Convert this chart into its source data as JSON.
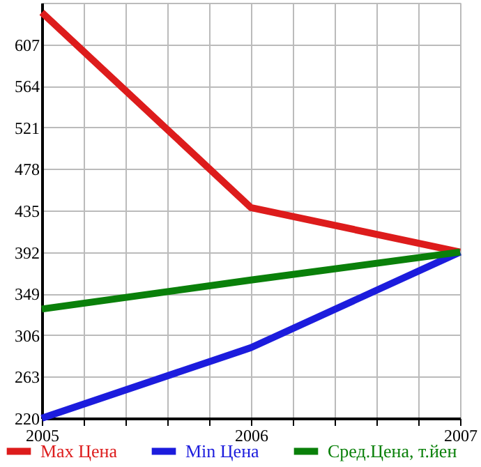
{
  "chart_data": {
    "type": "line",
    "x": [
      2005,
      2006,
      2007
    ],
    "series": [
      {
        "name": "Max Цена",
        "color": "#dd1c1c",
        "values": [
          640,
          438,
          392
        ]
      },
      {
        "name": "Min Цена",
        "color": "#1c1cdd",
        "values": [
          220,
          293,
          392
        ]
      },
      {
        "name": "Сред.Цена, т.йен",
        "color": "#0a800a",
        "values": [
          333,
          363,
          392
        ]
      }
    ],
    "xlim": [
      2005,
      2007
    ],
    "xticks": [
      2005,
      {
        "value": 2005.2,
        "label": null
      },
      {
        "value": 2005.4,
        "label": null
      },
      {
        "value": 2005.6,
        "label": null
      },
      {
        "value": 2005.8,
        "label": null
      },
      2006,
      {
        "value": 2006.2,
        "label": null
      },
      {
        "value": 2006.4,
        "label": null
      },
      {
        "value": 2006.6,
        "label": null
      },
      {
        "value": 2006.8,
        "label": null
      },
      2007
    ],
    "ylim": [
      220,
      650
    ],
    "yticks": [
      220,
      263,
      306,
      349,
      392,
      435,
      478,
      521,
      564,
      607,
      {
        "value": 650,
        "label": null
      }
    ],
    "grid": true,
    "legend": "bottom",
    "marker": "none",
    "line_style": "solid"
  }
}
